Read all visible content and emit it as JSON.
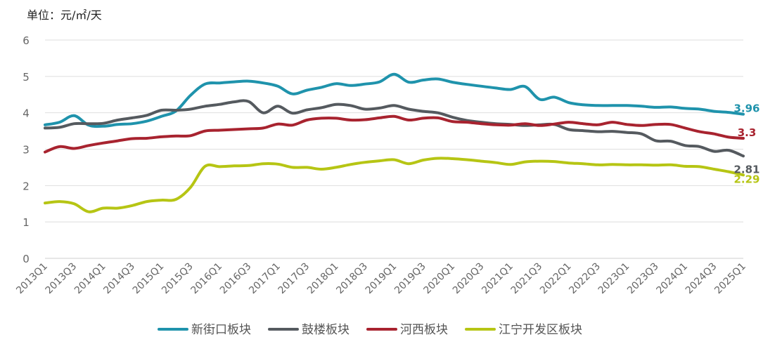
{
  "chart_data": {
    "type": "line",
    "unit_label": "单位：元/㎡/天",
    "ylim": [
      0,
      6
    ],
    "yticks": [
      "0",
      "1",
      "2",
      "3",
      "4",
      "5",
      "6"
    ],
    "grid": true,
    "legend_position": "bottom",
    "x": [
      "2013Q1",
      "2013Q2",
      "2013Q3",
      "2013Q4",
      "2014Q1",
      "2014Q2",
      "2014Q3",
      "2014Q4",
      "2015Q1",
      "2015Q2",
      "2015Q3",
      "2015Q4",
      "2016Q1",
      "2016Q2",
      "2016Q3",
      "2016Q4",
      "2017Q1",
      "2017Q2",
      "2017Q3",
      "2017Q4",
      "2018Q1",
      "2018Q2",
      "2018Q3",
      "2018Q4",
      "2019Q1",
      "2019Q2",
      "2019Q3",
      "2019Q4",
      "2020Q1",
      "2020Q2",
      "2020Q3",
      "2020Q4",
      "2021Q1",
      "2021Q2",
      "2021Q3",
      "2021Q4",
      "2022Q1",
      "2022Q2",
      "2022Q3",
      "2022Q4",
      "2023Q1",
      "2023Q2",
      "2023Q3",
      "2023Q4",
      "2024Q1",
      "2024Q2",
      "2024Q3",
      "2024Q4",
      "2025Q1"
    ],
    "x_tick_labels": [
      "2013Q1",
      "2013Q3",
      "2014Q1",
      "2014Q3",
      "2015Q1",
      "2015Q3",
      "2016Q1",
      "2016Q3",
      "2017Q1",
      "2017Q3",
      "2018Q1",
      "2018Q3",
      "2019Q1",
      "2019Q3",
      "2020Q1",
      "2020Q3",
      "2021Q1",
      "2021Q3",
      "2022Q1",
      "2022Q3",
      "2023Q1",
      "2023Q3",
      "2024Q1",
      "2024Q3",
      "2025Q1"
    ],
    "series": [
      {
        "name": "新街口板块",
        "color": "#1f93ac",
        "end_label": "3.96",
        "values": [
          3.67,
          3.74,
          3.92,
          3.66,
          3.63,
          3.68,
          3.7,
          3.77,
          3.9,
          4.05,
          4.48,
          4.79,
          4.82,
          4.85,
          4.87,
          4.82,
          4.73,
          4.52,
          4.62,
          4.7,
          4.8,
          4.75,
          4.79,
          4.85,
          5.06,
          4.84,
          4.9,
          4.93,
          4.84,
          4.78,
          4.73,
          4.68,
          4.64,
          4.72,
          4.37,
          4.43,
          4.28,
          4.22,
          4.2,
          4.2,
          4.2,
          4.18,
          4.15,
          4.16,
          4.12,
          4.1,
          4.04,
          4.01,
          3.96
        ]
      },
      {
        "name": "鼓楼板块",
        "color": "#555a5f",
        "end_label": "2.81",
        "values": [
          3.58,
          3.6,
          3.7,
          3.7,
          3.71,
          3.8,
          3.86,
          3.93,
          4.07,
          4.07,
          4.1,
          4.18,
          4.23,
          4.3,
          4.31,
          4.0,
          4.18,
          3.99,
          4.08,
          4.14,
          4.23,
          4.2,
          4.1,
          4.13,
          4.2,
          4.1,
          4.04,
          4.0,
          3.88,
          3.79,
          3.74,
          3.7,
          3.68,
          3.65,
          3.67,
          3.68,
          3.54,
          3.51,
          3.48,
          3.49,
          3.46,
          3.42,
          3.23,
          3.22,
          3.1,
          3.07,
          2.94,
          2.97,
          2.81
        ]
      },
      {
        "name": "河西板块",
        "color": "#a8232f",
        "end_label": "3.3",
        "values": [
          2.92,
          3.07,
          3.02,
          3.1,
          3.17,
          3.23,
          3.29,
          3.3,
          3.34,
          3.36,
          3.37,
          3.5,
          3.52,
          3.54,
          3.56,
          3.58,
          3.69,
          3.66,
          3.8,
          3.85,
          3.85,
          3.8,
          3.81,
          3.86,
          3.9,
          3.8,
          3.85,
          3.86,
          3.76,
          3.74,
          3.7,
          3.67,
          3.66,
          3.7,
          3.65,
          3.69,
          3.74,
          3.7,
          3.67,
          3.74,
          3.68,
          3.65,
          3.68,
          3.68,
          3.58,
          3.48,
          3.42,
          3.33,
          3.3
        ]
      },
      {
        "name": "江宁开发区板块",
        "color": "#b6c514",
        "end_label": "2.29",
        "values": [
          1.52,
          1.56,
          1.5,
          1.28,
          1.38,
          1.38,
          1.45,
          1.56,
          1.6,
          1.62,
          1.95,
          2.53,
          2.52,
          2.54,
          2.55,
          2.6,
          2.59,
          2.5,
          2.5,
          2.45,
          2.5,
          2.58,
          2.64,
          2.68,
          2.71,
          2.6,
          2.7,
          2.75,
          2.74,
          2.71,
          2.67,
          2.63,
          2.58,
          2.65,
          2.67,
          2.66,
          2.62,
          2.6,
          2.57,
          2.58,
          2.57,
          2.57,
          2.56,
          2.57,
          2.53,
          2.52,
          2.45,
          2.38,
          2.29
        ]
      }
    ]
  }
}
